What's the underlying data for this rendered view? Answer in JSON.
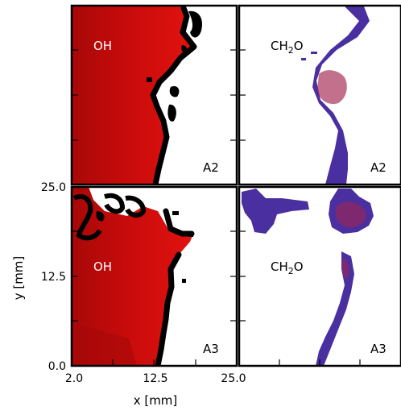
{
  "chart_data": {
    "type": "heatmap",
    "xlabel": "x [mm]",
    "ylabel": "y [mm]",
    "x_ticks": [
      "2.0",
      "12.5",
      "25.0"
    ],
    "y_ticks": [
      "0.0",
      "12.5",
      "25.0"
    ],
    "xlim": [
      2.0,
      25.0
    ],
    "ylim": [
      0.0,
      25.0
    ],
    "colors": {
      "oh_field": "#d8100e",
      "oh_dark": "#a70808",
      "flame_edge": "#000000",
      "ch2o_field": "#4a2fa0",
      "ch2o_hot": "#a2244e"
    },
    "panels": [
      {
        "species": "OH",
        "case": "A2"
      },
      {
        "species_main": "CH",
        "species_sub": "2",
        "species_tail": "O",
        "case": "A2"
      },
      {
        "species": "OH",
        "case": "A3"
      },
      {
        "species_main": "CH",
        "species_sub": "2",
        "species_tail": "O",
        "case": "A3"
      }
    ]
  }
}
